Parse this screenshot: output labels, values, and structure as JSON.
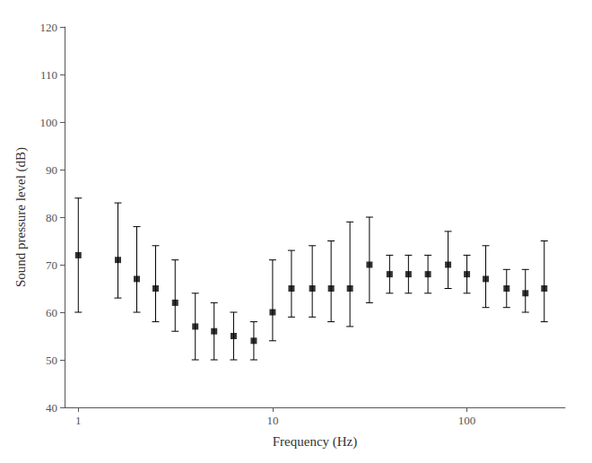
{
  "chart_data": {
    "type": "scatter",
    "x": [
      1,
      1.6,
      2,
      2.5,
      3.15,
      4,
      5,
      6.3,
      8,
      10,
      12.5,
      16,
      20,
      25,
      31.5,
      40,
      50,
      63,
      80,
      100,
      125,
      160,
      200,
      250
    ],
    "values": [
      72,
      71,
      67,
      65,
      62,
      57,
      56,
      55,
      54,
      60,
      65,
      65,
      65,
      65,
      70,
      68,
      68,
      68,
      70,
      68,
      67,
      65,
      64,
      65
    ],
    "error_upper": [
      12,
      12,
      11,
      9,
      9,
      7,
      6,
      5,
      4,
      11,
      8,
      9,
      10,
      14,
      10,
      4,
      4,
      4,
      7,
      4,
      7,
      4,
      5,
      10
    ],
    "error_lower": [
      12,
      8,
      7,
      7,
      6,
      7,
      6,
      5,
      4,
      6,
      6,
      6,
      7,
      8,
      8,
      4,
      4,
      4,
      5,
      4,
      6,
      4,
      4,
      7
    ],
    "xlabel": "Frequency (Hz)",
    "ylabel": "Sound pressure level (dB)",
    "log": "x",
    "xlim": [
      0.85,
      320
    ],
    "xticks": [
      1,
      10,
      100
    ],
    "ylim": [
      40,
      120
    ],
    "yticks": [
      40,
      50,
      60,
      70,
      80,
      90,
      100,
      110,
      120
    ],
    "grid": false,
    "color": "black",
    "marker": "square"
  }
}
